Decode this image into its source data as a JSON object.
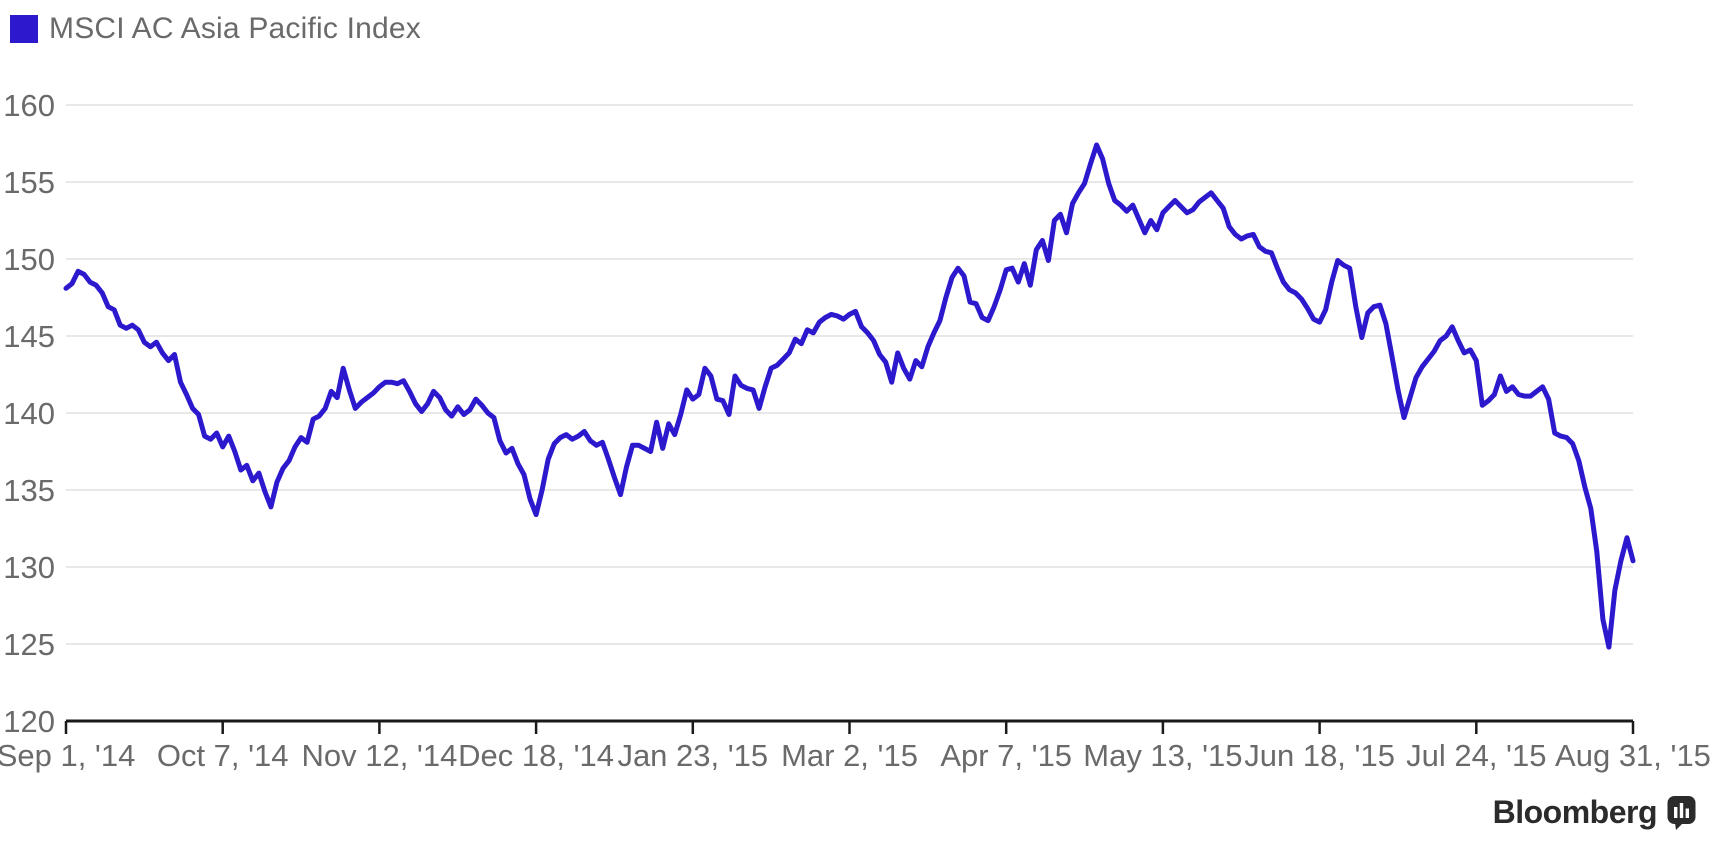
{
  "legend": {
    "label": "MSCI AC Asia Pacific Index"
  },
  "branding": {
    "logo_text": "Bloomberg",
    "logo_icon": "bar-chart-speech-bubble-icon"
  },
  "colors": {
    "accent_line": "#2d19cd",
    "legend_swatch": "#2d19cd",
    "grid": "#e8e8e8",
    "axis": "#1a1a1a",
    "label_text": "#6a6a6a",
    "logo": "#2b2b2b",
    "background": "#ffffff"
  },
  "chart_data": {
    "type": "line",
    "title": "",
    "xlabel": "",
    "ylabel": "",
    "ylim": [
      120,
      160
    ],
    "y_ticks": [
      160,
      155,
      150,
      145,
      140,
      135,
      130,
      125,
      120
    ],
    "grid": "horizontal",
    "legend_position": "top-left",
    "x_unit": "trading days from Sep 1, 2014 to Aug 31, 2015",
    "x_tick_labels": [
      "Sep 1, '14",
      "Oct 7, '14",
      "Nov 12, '14",
      "Dec 18, '14",
      "Jan 23, '15",
      "Mar 2, '15",
      "Apr 7, '15",
      "May 13, '15",
      "Jun 18, '15",
      "Jul 24, '15",
      "Aug 31, '15"
    ],
    "x_tick_day_indices": [
      0,
      26,
      52,
      78,
      104,
      130,
      156,
      182,
      208,
      234,
      260
    ],
    "series": [
      {
        "name": "MSCI AC Asia Pacific Index",
        "color": "#2d19cd",
        "values": [
          148.1,
          148.4,
          149.2,
          149.0,
          148.5,
          148.3,
          147.8,
          146.9,
          146.7,
          145.7,
          145.5,
          145.7,
          145.4,
          144.6,
          144.3,
          144.6,
          143.9,
          143.4,
          143.8,
          142.0,
          141.2,
          140.3,
          139.9,
          138.5,
          138.3,
          138.7,
          137.8,
          138.5,
          137.5,
          136.3,
          136.6,
          135.6,
          136.1,
          134.9,
          133.9,
          135.5,
          136.4,
          136.9,
          137.8,
          138.4,
          138.1,
          139.6,
          139.8,
          140.3,
          141.4,
          141.0,
          142.9,
          141.5,
          140.3,
          140.7,
          141.0,
          141.3,
          141.7,
          142.0,
          142.0,
          141.9,
          142.1,
          141.4,
          140.6,
          140.1,
          140.6,
          141.4,
          141.0,
          140.2,
          139.8,
          140.4,
          139.9,
          140.2,
          140.9,
          140.5,
          140.0,
          139.7,
          138.2,
          137.4,
          137.7,
          136.7,
          136.0,
          134.4,
          133.4,
          135.0,
          137.0,
          138.0,
          138.4,
          138.6,
          138.3,
          138.5,
          138.8,
          138.2,
          137.9,
          138.1,
          137.0,
          135.8,
          134.7,
          136.5,
          137.9,
          137.9,
          137.7,
          137.5,
          139.4,
          137.7,
          139.3,
          138.6,
          139.9,
          141.5,
          140.9,
          141.2,
          142.9,
          142.4,
          140.9,
          140.8,
          139.9,
          142.4,
          141.8,
          141.6,
          141.5,
          140.3,
          141.7,
          142.9,
          143.1,
          143.5,
          143.9,
          144.8,
          144.5,
          145.4,
          145.2,
          145.9,
          146.2,
          146.4,
          146.3,
          146.1,
          146.4,
          146.6,
          145.6,
          145.2,
          144.7,
          143.8,
          143.3,
          142.0,
          143.9,
          142.9,
          142.2,
          143.4,
          143.0,
          144.3,
          145.2,
          146.0,
          147.5,
          148.8,
          149.4,
          148.9,
          147.2,
          147.1,
          146.2,
          146.0,
          146.9,
          148.0,
          149.3,
          149.4,
          148.5,
          149.7,
          148.3,
          150.6,
          151.2,
          149.9,
          152.5,
          152.9,
          151.7,
          153.6,
          154.3,
          154.9,
          156.2,
          157.4,
          156.5,
          154.9,
          153.8,
          153.5,
          153.1,
          153.5,
          152.6,
          151.7,
          152.5,
          151.9,
          153.0,
          153.4,
          153.8,
          153.4,
          153.0,
          153.2,
          153.7,
          154.0,
          154.3,
          153.8,
          153.3,
          152.1,
          151.6,
          151.3,
          151.5,
          151.6,
          150.8,
          150.5,
          150.4,
          149.4,
          148.5,
          148.0,
          147.8,
          147.4,
          146.8,
          146.1,
          145.9,
          146.7,
          148.5,
          149.9,
          149.6,
          149.4,
          146.9,
          144.9,
          146.5,
          146.9,
          147.0,
          145.8,
          143.7,
          141.5,
          139.7,
          141.0,
          142.3,
          143.0,
          143.5,
          144.0,
          144.7,
          145.0,
          145.6,
          144.7,
          143.9,
          144.1,
          143.4,
          140.5,
          140.8,
          141.2,
          142.4,
          141.4,
          141.7,
          141.2,
          141.1,
          141.1,
          141.4,
          141.7,
          140.9,
          138.7,
          138.5,
          138.4,
          138.0,
          136.9,
          135.2,
          133.8,
          131.0,
          126.6,
          124.8,
          128.5,
          130.4,
          131.9,
          130.4
        ]
      }
    ]
  }
}
